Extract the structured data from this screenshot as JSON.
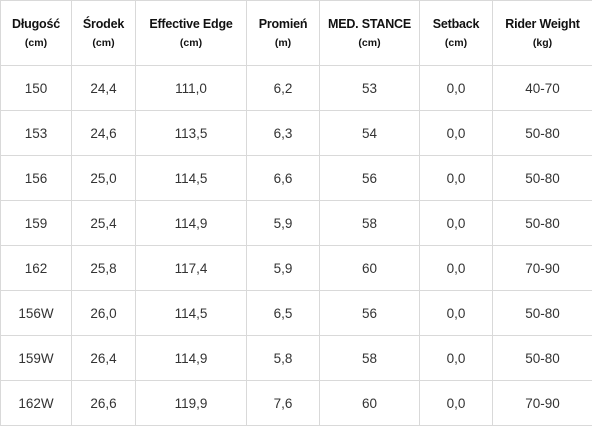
{
  "table": {
    "headers": [
      {
        "name": "Długość",
        "unit": "(cm)"
      },
      {
        "name": "Środek",
        "unit": "(cm)"
      },
      {
        "name": "Effective Edge",
        "unit": "(cm)"
      },
      {
        "name": "Promień",
        "unit": "(m)"
      },
      {
        "name": "MED. STANCE",
        "unit": "(cm)"
      },
      {
        "name": "Setback",
        "unit": "(cm)"
      },
      {
        "name": "Rider Weight",
        "unit": "(kg)"
      }
    ],
    "rows": [
      [
        "150",
        "24,4",
        "111,0",
        "6,2",
        "53",
        "0,0",
        "40-70"
      ],
      [
        "153",
        "24,6",
        "113,5",
        "6,3",
        "54",
        "0,0",
        "50-80"
      ],
      [
        "156",
        "25,0",
        "114,5",
        "6,6",
        "56",
        "0,0",
        "50-80"
      ],
      [
        "159",
        "25,4",
        "114,9",
        "5,9",
        "58",
        "0,0",
        "50-80"
      ],
      [
        "162",
        "25,8",
        "117,4",
        "5,9",
        "60",
        "0,0",
        "70-90"
      ],
      [
        "156W",
        "26,0",
        "114,5",
        "6,5",
        "56",
        "0,0",
        "50-80"
      ],
      [
        "159W",
        "26,4",
        "114,9",
        "5,8",
        "58",
        "0,0",
        "50-80"
      ],
      [
        "162W",
        "26,6",
        "119,9",
        "7,6",
        "60",
        "0,0",
        "70-90"
      ]
    ]
  }
}
